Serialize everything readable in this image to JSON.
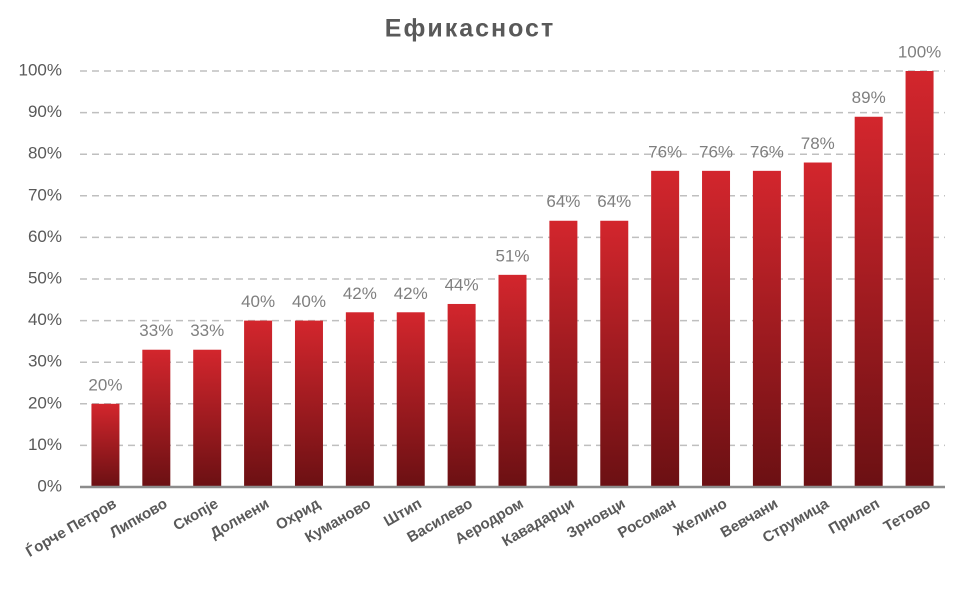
{
  "chart_data": {
    "type": "bar",
    "title": "Ефикасност",
    "categories": [
      "Ѓорче Петров",
      "Липково",
      "Скопје",
      "Долнени",
      "Охрид",
      "Куманово",
      "Штип",
      "Василево",
      "Аеродром",
      "Кавадарци",
      "Зрновци",
      "Росоман",
      "Желино",
      "Вевчани",
      "Струмица",
      "Прилеп",
      "Тетово"
    ],
    "values": [
      20,
      33,
      33,
      40,
      40,
      42,
      42,
      44,
      51,
      64,
      64,
      76,
      76,
      76,
      78,
      89,
      100
    ],
    "value_labels": [
      "20%",
      "33%",
      "33%",
      "40%",
      "40%",
      "42%",
      "42%",
      "44%",
      "51%",
      "64%",
      "64%",
      "76%",
      "76%",
      "76%",
      "78%",
      "89%",
      "100%"
    ],
    "color": "#d3262d",
    "ylim": [
      0,
      100
    ],
    "yticks": [
      {
        "value": 0,
        "label": "0%"
      },
      {
        "value": 10,
        "label": "10%"
      },
      {
        "value": 20,
        "label": "20%"
      },
      {
        "value": 30,
        "label": "30%"
      },
      {
        "value": 40,
        "label": "40%"
      },
      {
        "value": 50,
        "label": "50%"
      },
      {
        "value": 60,
        "label": "60%"
      },
      {
        "value": 70,
        "label": "70%"
      },
      {
        "value": 80,
        "label": "80%"
      },
      {
        "value": 90,
        "label": "90%"
      },
      {
        "value": 100,
        "label": "100%"
      }
    ],
    "grid": true
  }
}
